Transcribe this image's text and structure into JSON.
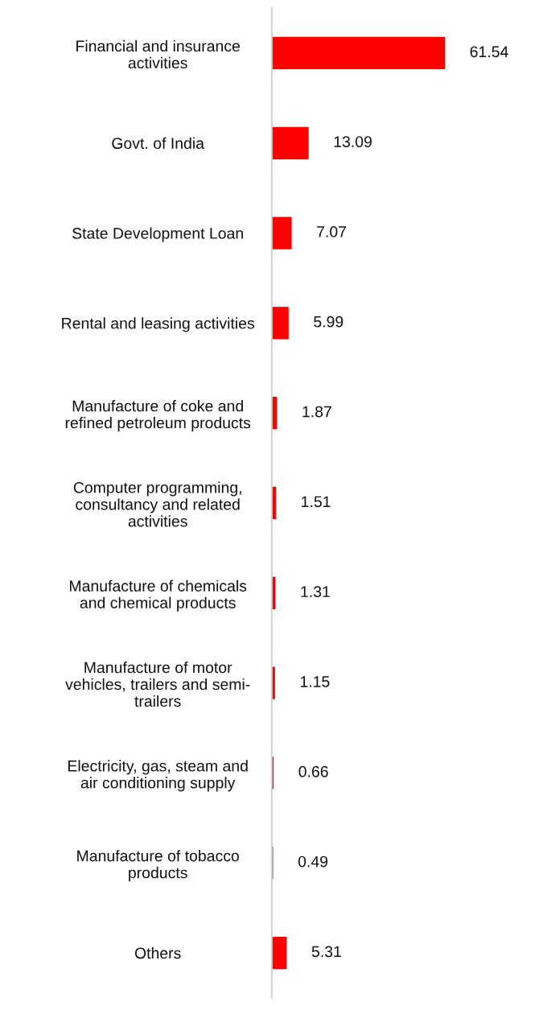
{
  "chart_data": {
    "type": "bar",
    "orientation": "horizontal",
    "categories": [
      "Financial and insurance\nactivities",
      "Govt. of India",
      "State Development Loan",
      "Rental and leasing activities",
      "Manufacture of coke and\nrefined petroleum products",
      "Computer programming,\nconsultancy and related\nactivities",
      "Manufacture of chemicals\nand chemical products",
      "Manufacture of motor\nvehicles, trailers and semi-\ntrailers",
      "Electricity, gas, steam and\nair conditioning supply",
      "Manufacture of tobacco\nproducts",
      "Others"
    ],
    "values": [
      61.54,
      13.09,
      7.07,
      5.99,
      1.87,
      1.51,
      1.31,
      1.15,
      0.66,
      0.49,
      5.31
    ],
    "color": "#ff0000",
    "data_labels": true,
    "tick_labels": "y",
    "grid": false
  }
}
